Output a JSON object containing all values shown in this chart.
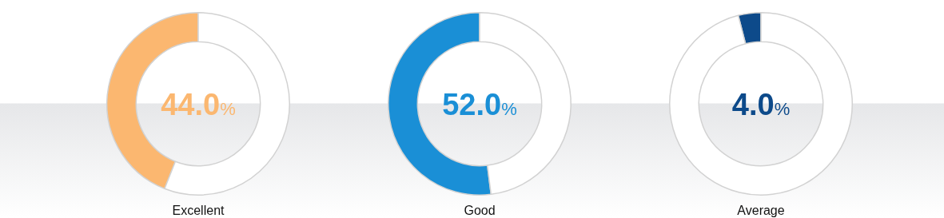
{
  "chart_data": [
    {
      "type": "donut",
      "title": "Excellent",
      "categories": [
        null,
        null
      ],
      "values": [
        44.0,
        56.0
      ],
      "colors": [
        "#fbb770",
        "#ffffff"
      ],
      "annotations": [
        "44.0%"
      ]
    },
    {
      "type": "donut",
      "title": "Good",
      "categories": [
        null,
        null
      ],
      "values": [
        52.0,
        48.0
      ],
      "colors": [
        "#1a8fd6",
        "#ffffff"
      ],
      "annotations": [
        "52.0%"
      ]
    },
    {
      "type": "donut",
      "title": "Average",
      "categories": [
        null,
        null
      ],
      "values": [
        4.0,
        96.0
      ],
      "colors": [
        "#0d4a8a",
        "#ffffff"
      ],
      "annotations": [
        "4.0%"
      ]
    }
  ]
}
